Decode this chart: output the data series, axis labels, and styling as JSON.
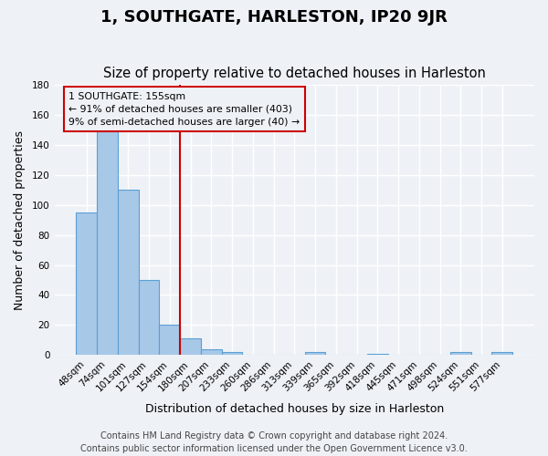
{
  "title": "1, SOUTHGATE, HARLESTON, IP20 9JR",
  "subtitle": "Size of property relative to detached houses in Harleston",
  "xlabel": "Distribution of detached houses by size in Harleston",
  "ylabel": "Number of detached properties",
  "bar_labels": [
    "48sqm",
    "74sqm",
    "101sqm",
    "127sqm",
    "154sqm",
    "180sqm",
    "207sqm",
    "233sqm",
    "260sqm",
    "286sqm",
    "313sqm",
    "339sqm",
    "365sqm",
    "392sqm",
    "418sqm",
    "445sqm",
    "471sqm",
    "498sqm",
    "524sqm",
    "551sqm",
    "577sqm"
  ],
  "bar_values": [
    95,
    150,
    110,
    50,
    20,
    11,
    4,
    2,
    0,
    0,
    0,
    2,
    0,
    0,
    1,
    0,
    0,
    0,
    2,
    0,
    2
  ],
  "bar_color": "#a8c8e8",
  "bar_edge_color": "#5a9fd4",
  "vline_x": 4.5,
  "vline_color": "#cc0000",
  "annotation_title": "1 SOUTHGATE: 155sqm",
  "annotation_line1": "← 91% of detached houses are smaller (403)",
  "annotation_line2": "9% of semi-detached houses are larger (40) →",
  "ylim": [
    0,
    180
  ],
  "yticks": [
    0,
    20,
    40,
    60,
    80,
    100,
    120,
    140,
    160,
    180
  ],
  "footer1": "Contains HM Land Registry data © Crown copyright and database right 2024.",
  "footer2": "Contains public sector information licensed under the Open Government Licence v3.0.",
  "bg_color": "#eef2f7",
  "grid_color": "#ffffff",
  "title_fontsize": 13,
  "subtitle_fontsize": 10.5,
  "axis_label_fontsize": 9,
  "tick_fontsize": 7.5,
  "footer_fontsize": 7
}
